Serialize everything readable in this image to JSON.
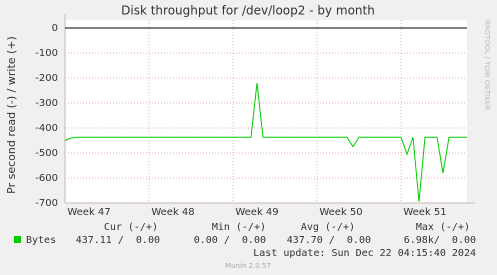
{
  "chart_data": {
    "type": "line",
    "title": "Disk throughput for /dev/loop2 - by month",
    "y_label": "Pr second read (-) / write (+)",
    "side_label": "RRDTOOL / TOBI OETIKER",
    "categories": [
      null,
      null,
      null,
      null,
      "Week 47",
      null,
      null,
      null,
      null,
      null,
      null,
      null,
      null,
      null,
      null,
      null,
      null,
      null,
      "Week 48",
      null,
      null,
      null,
      null,
      null,
      null,
      null,
      null,
      null,
      null,
      null,
      null,
      null,
      "Week 49",
      null,
      null,
      null,
      null,
      null,
      null,
      null,
      null,
      null,
      null,
      null,
      null,
      null,
      "Week 50",
      null,
      null,
      null,
      null,
      null,
      null,
      null,
      null,
      null,
      null,
      null,
      null,
      null,
      "Week 51",
      null,
      null,
      null,
      null,
      null,
      null,
      null
    ],
    "series": [
      {
        "name": "Bytes",
        "color": "#00cc00",
        "values": [
          -450,
          -440,
          -437,
          -437,
          -437,
          -437,
          -437,
          -437,
          -437,
          -437,
          -437,
          -437,
          -437,
          -437,
          -437,
          -437,
          -437,
          -437,
          -437,
          -437,
          -437,
          -437,
          -437,
          -437,
          -437,
          -437,
          -437,
          -437,
          -437,
          -437,
          -437,
          -437,
          -220,
          -437,
          -437,
          -437,
          -437,
          -437,
          -437,
          -437,
          -437,
          -437,
          -437,
          -437,
          -437,
          -437,
          -437,
          -437,
          -475,
          -437,
          -437,
          -437,
          -437,
          -437,
          -437,
          -437,
          -437,
          -505,
          -437,
          -695,
          -437,
          -437,
          -437,
          -580,
          -437,
          -437,
          -437,
          -437
        ]
      }
    ],
    "ylim": [
      -700,
      0
    ],
    "yticks": [
      0,
      -100,
      -200,
      -300,
      -400,
      -500,
      -600,
      -700
    ],
    "grid": true,
    "legend_table": {
      "headers": [
        "Cur (-/+)",
        "Min (-/+)",
        "Avg (-/+)",
        "Max (-/+)"
      ],
      "row": [
        "437.11 /  0.00",
        "0.00 /  0.00",
        "437.70 /  0.00",
        "6.98k/  0.00"
      ]
    },
    "last_update": "Last update: Sun Dec 22 04:15:40 2024",
    "footer": "Munin 2.0.57"
  }
}
